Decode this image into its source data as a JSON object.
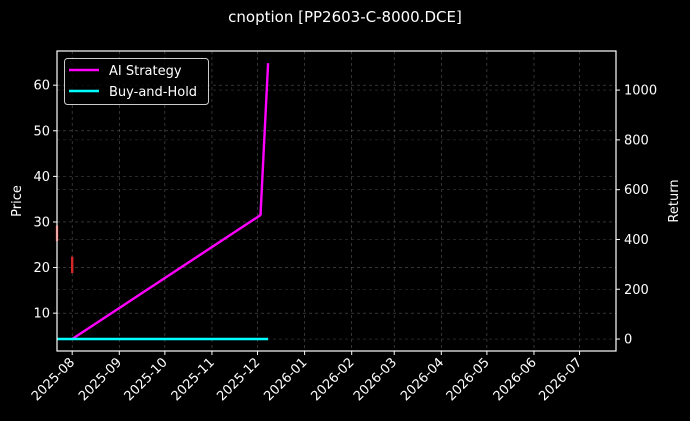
{
  "title": "cnoption [PP2603-C-8000.DCE]",
  "colors": {
    "background": "#000000",
    "ai_strategy": "#ff00ff",
    "buy_and_hold": "#00ffff",
    "candle_down": "#d62728",
    "grid": "#555555",
    "axis": "#ffffff"
  },
  "legend": {
    "items": [
      {
        "label": "AI Strategy",
        "color": "#ff00ff"
      },
      {
        "label": "Buy-and-Hold",
        "color": "#00ffff"
      }
    ]
  },
  "chart_data": {
    "type": "line",
    "title": "cnoption [PP2603-C-8000.DCE]",
    "xlabel": "",
    "ylabel": "Price",
    "ylabel_right": "Return",
    "x_ticks": [
      "2025-08",
      "2025-09",
      "2025-10",
      "2025-11",
      "2025-12",
      "2026-01",
      "2026-02",
      "2026-03",
      "2026-04",
      "2026-05",
      "2026-06",
      "2026-07"
    ],
    "left_y_ticks": [
      10,
      20,
      30,
      40,
      50,
      60
    ],
    "right_y_ticks": [
      0,
      200,
      400,
      600,
      800,
      1000
    ],
    "ylim_left": [
      1.7,
      67.5
    ],
    "ylim_right": [
      -48,
      1157
    ],
    "xlim": [
      "2025-07-22",
      "2026-07-25"
    ],
    "grid": true,
    "legend_position": "upper left",
    "candles": [
      {
        "date": "2025-07-22",
        "low": 25.8,
        "high": 29.2,
        "color": "#d62728"
      },
      {
        "date": "2025-08-01",
        "low": 18.8,
        "high": 22.4,
        "color": "#d62728"
      }
    ],
    "series": [
      {
        "name": "AI Strategy",
        "axis": "right",
        "color": "#ff00ff",
        "x": [
          "2025-08-01",
          "2025-12-03",
          "2025-12-08"
        ],
        "values": [
          0,
          498,
          1108
        ]
      },
      {
        "name": "Buy-and-Hold",
        "axis": "right",
        "color": "#00ffff",
        "x": [
          "2025-07-22",
          "2025-12-08"
        ],
        "values": [
          0,
          0
        ]
      }
    ]
  }
}
